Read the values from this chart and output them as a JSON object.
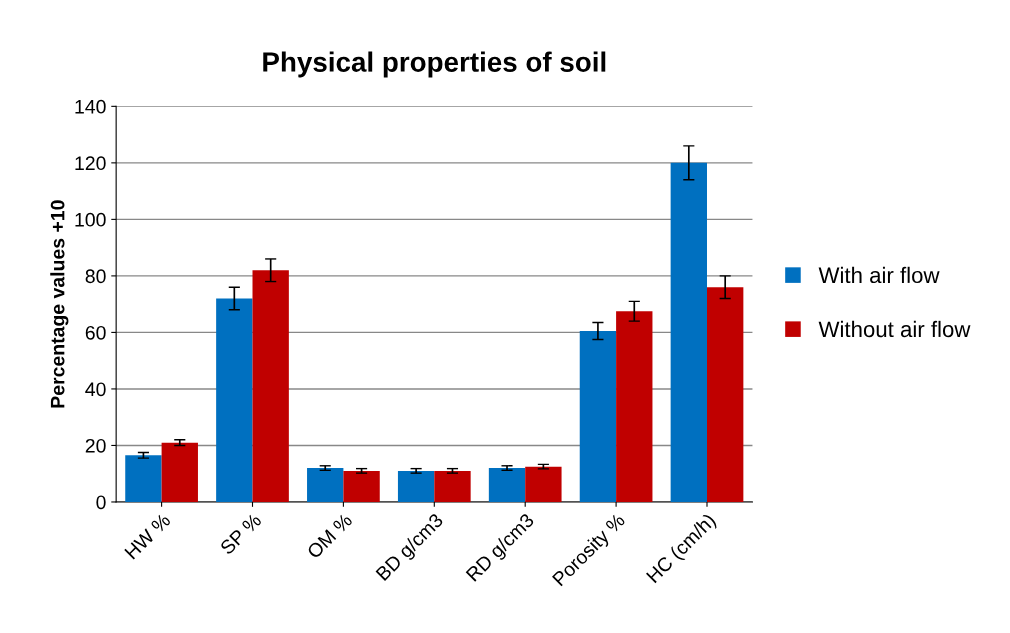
{
  "chart_data": {
    "type": "bar",
    "title": "Physical properties of soil",
    "ylabel": "Percentage values +10",
    "categories": [
      "HW %",
      "SP %",
      "OM %",
      "BD g/cm3",
      "RD g/cm3",
      "Porosity %",
      "HC (cm/h)"
    ],
    "series": [
      {
        "name": "With air flow",
        "color": "#0070c0",
        "values": [
          16.5,
          72,
          12,
          11,
          12,
          60.5,
          120
        ],
        "errors": [
          1,
          4,
          0.8,
          0.8,
          0.8,
          3,
          6
        ]
      },
      {
        "name": "Without air flow",
        "color": "#c00000",
        "values": [
          21,
          82,
          11,
          11,
          12.5,
          67.5,
          76
        ],
        "errors": [
          1,
          4,
          0.8,
          0.8,
          0.8,
          3.5,
          4
        ]
      }
    ],
    "ylim": [
      0,
      140
    ],
    "yticks": [
      0,
      20,
      40,
      60,
      80,
      100,
      120,
      140
    ],
    "grid": "y",
    "legend": "right"
  }
}
